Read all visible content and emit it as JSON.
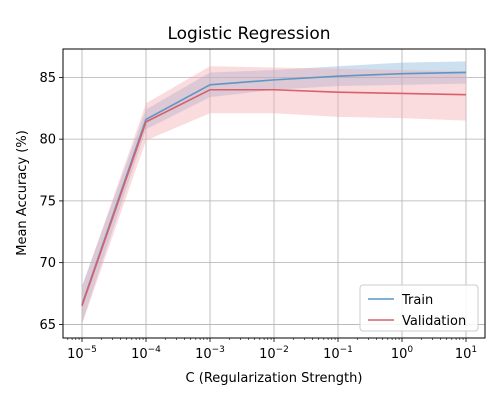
{
  "chart_data": {
    "type": "line",
    "title": "Logistic Regression",
    "xlabel": "C (Regularization Strength)",
    "ylabel": "Mean Accuracy (%)",
    "x_scale": "log",
    "x": [
      1e-05,
      0.0001,
      0.001,
      0.01,
      0.1,
      1,
      10
    ],
    "x_tick_labels": [
      {
        "base": "10",
        "exp": "−5"
      },
      {
        "base": "10",
        "exp": "−4"
      },
      {
        "base": "10",
        "exp": "−3"
      },
      {
        "base": "10",
        "exp": "−2"
      },
      {
        "base": "10",
        "exp": "−1"
      },
      {
        "base": "10",
        "exp": "0"
      },
      {
        "base": "10",
        "exp": "1"
      }
    ],
    "ylim": [
      63.9,
      87.3
    ],
    "y_ticks": [
      65,
      70,
      75,
      80,
      85
    ],
    "grid": true,
    "legend_position": "bottom-right",
    "series": [
      {
        "name": "Train",
        "color": "#5b97c4",
        "band_color": "#86b6dc",
        "values": [
          66.6,
          81.6,
          84.4,
          84.8,
          85.1,
          85.3,
          85.4
        ],
        "lower": [
          65.1,
          80.8,
          83.4,
          84.0,
          84.3,
          84.4,
          84.5
        ],
        "upper": [
          68.1,
          82.4,
          85.4,
          85.6,
          85.9,
          86.2,
          86.3
        ]
      },
      {
        "name": "Validation",
        "color": "#d9606a",
        "band_color": "#f4aab1",
        "values": [
          66.5,
          81.4,
          84.0,
          84.0,
          83.8,
          83.7,
          83.6
        ],
        "lower": [
          65.0,
          79.9,
          82.1,
          82.1,
          81.8,
          81.7,
          81.5
        ],
        "upper": [
          68.0,
          82.9,
          85.9,
          85.8,
          85.7,
          85.6,
          85.5
        ]
      }
    ]
  }
}
